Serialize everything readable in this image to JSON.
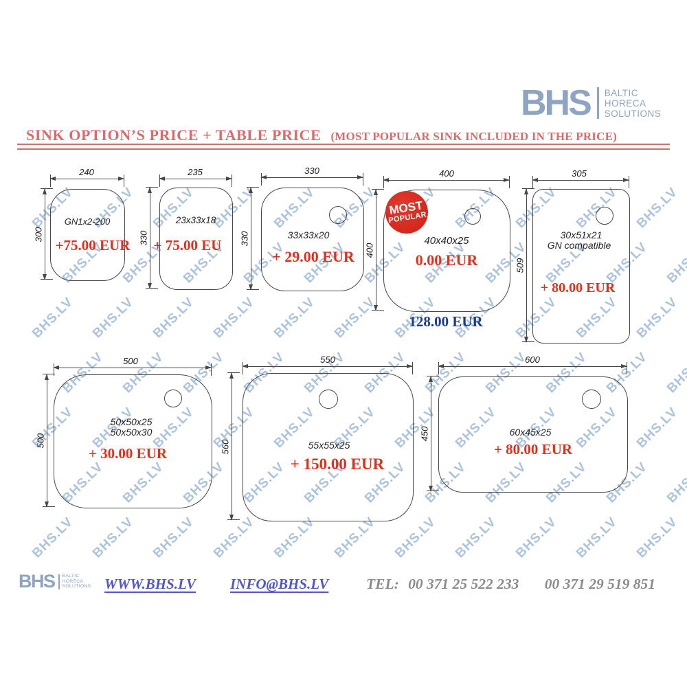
{
  "header": {
    "logo": {
      "text": "BHS",
      "sub": [
        "BALTIC",
        "HORECA",
        "SOLUTIONS"
      ]
    },
    "title_main": "SINK OPTION’S PRICE + TABLE PRICE",
    "title_sub": "(MOST POPULAR SINK INCLUDED IN THE PRICE)"
  },
  "watermark": {
    "text": "BHS.LV"
  },
  "sinks": [
    {
      "width_label": "240",
      "height_label": "300",
      "size_label": "GN1x2-200",
      "price": "+75.00 EUR"
    },
    {
      "width_label": "235",
      "height_label": "330",
      "size_label": "23x33x18",
      "price": "+ 75.00 EU"
    },
    {
      "width_label": "330",
      "height_label": "330",
      "size_label": "33x33x20",
      "price": "+ 29.00 EUR"
    },
    {
      "width_label": "400",
      "height_label": "400",
      "size_label": "40x40x25",
      "price": "0.00 EUR",
      "table_price": "128.00 EUR",
      "badge1": "MOST",
      "badge2": "POPULAR"
    },
    {
      "width_label": "305",
      "height_label": "509",
      "size_label": "30x51x21",
      "size_label2": "GN compatible",
      "price": "+ 80.00 EUR"
    },
    {
      "width_label": "500",
      "height_label": "500",
      "size_label": "50x50x25",
      "size_label2": "50x50x30",
      "price": "+ 30.00 EUR"
    },
    {
      "width_label": "550",
      "height_label": "560",
      "size_label": "55x55x25",
      "price": "+ 150.00 EUR"
    },
    {
      "width_label": "600",
      "height_label": "450",
      "size_label": "60x45x25",
      "price": "+ 80.00 EUR"
    }
  ],
  "footer": {
    "logo": {
      "text": "BHS",
      "sub": [
        "BALTIC",
        "HORECA",
        "SOLUTIONS"
      ]
    },
    "website": "WWW.BHS.LV",
    "email": "INFO@BHS.LV",
    "tel_label": "TEL:",
    "phone1": "00 371  25 522 233",
    "phone2": "00 371 29 519 851"
  },
  "colors": {
    "title": "#dc6a6a",
    "price_red": "#e0301d",
    "price_blue": "#1b3a8c",
    "logo_blue": "#8da4c2",
    "link_blue": "#5156cb",
    "tel_gray": "#8b8b8b",
    "watermark_blue": "#8cacd0",
    "badge_red": "#d8271d"
  }
}
